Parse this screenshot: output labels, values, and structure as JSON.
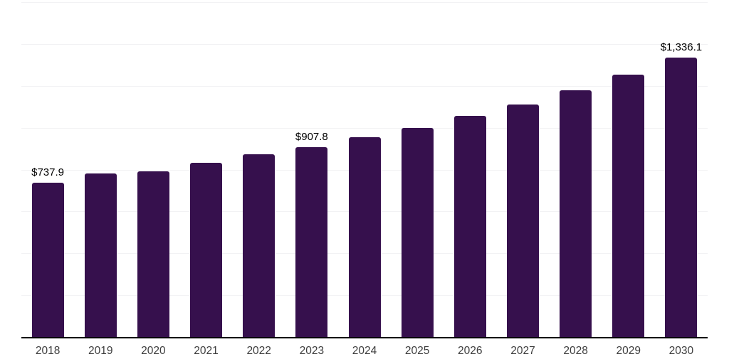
{
  "chart_data": {
    "type": "bar",
    "title": "",
    "xlabel": "",
    "ylabel": "",
    "categories": [
      "2018",
      "2019",
      "2020",
      "2021",
      "2022",
      "2023",
      "2024",
      "2025",
      "2026",
      "2027",
      "2028",
      "2029",
      "2030"
    ],
    "values": [
      737.9,
      781,
      792,
      833,
      873,
      907.8,
      954,
      1000,
      1055,
      1112,
      1180,
      1255,
      1336.1
    ],
    "data_labels": [
      "$737.9",
      "",
      "",
      "",
      "",
      "$907.8",
      "",
      "",
      "",
      "",
      "",
      "",
      "$1,336.1"
    ],
    "ylim": [
      0,
      1600
    ],
    "gridline_step": 200,
    "grid": "horizontal-only",
    "legend_position": "none",
    "y_axis_tick_labels_visible": false,
    "colors": {
      "bar_fill": "#36104D",
      "gridline": "#f2f2f4",
      "axis_line": "#000000",
      "x_tick_label": "#3d3d3d",
      "value_label": "#000000",
      "background": "#ffffff"
    }
  }
}
